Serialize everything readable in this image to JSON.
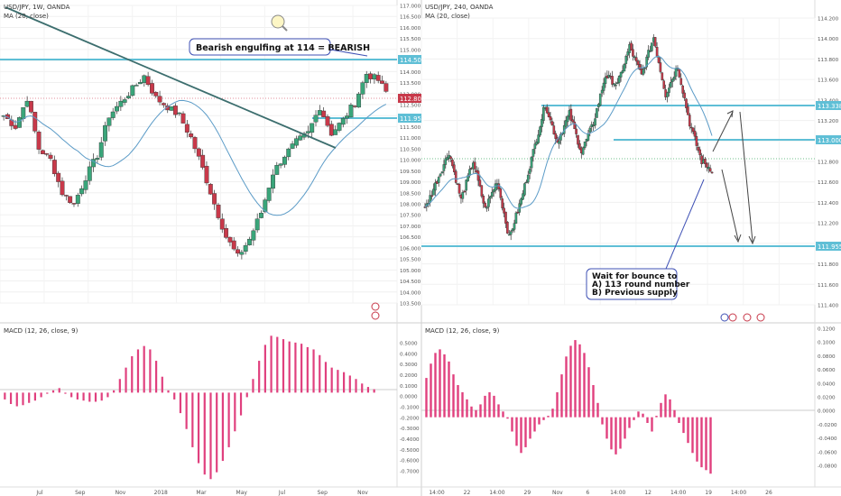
{
  "left_panel": {
    "symbol": "USD/JPY, 1W, OANDA",
    "indicator": "MA (20, close)",
    "price_axis": [
      "117.000",
      "116.500",
      "116.000",
      "115.500",
      "115.000",
      "114.500",
      "114.000",
      "113.500",
      "113.000",
      "112.500",
      "112.000",
      "111.500",
      "111.000",
      "110.500",
      "110.000",
      "109.500",
      "109.000",
      "108.500",
      "108.000",
      "107.500",
      "107.000",
      "106.500",
      "106.000",
      "105.500",
      "105.000",
      "104.500",
      "104.000",
      "103.500"
    ],
    "level_labels": {
      "resistance": "114.500",
      "last": "112.800",
      "support": "111.955"
    },
    "annotation": "Bearish engulfing at 114 = BEARISH",
    "macd_label": "MACD (12, 26, close, 9)",
    "macd_axis": [
      "0.5000",
      "0.4000",
      "0.3000",
      "0.2000",
      "0.1000",
      "0.0000",
      "-0.1000",
      "-0.2000",
      "-0.3000",
      "-0.4000",
      "-0.5000",
      "-0.6000",
      "-0.7000"
    ],
    "time_axis": [
      "Jul",
      "Sep",
      "Nov",
      "2018",
      "Mar",
      "May",
      "Jul",
      "Sep",
      "Nov"
    ]
  },
  "right_panel": {
    "symbol": "USD/JPY, 240, OANDA",
    "indicator": "MA (20, close)",
    "price_axis": [
      "114.200",
      "114.000",
      "113.800",
      "113.600",
      "113.400",
      "113.200",
      "113.000",
      "112.800",
      "112.600",
      "112.400",
      "112.200",
      "112.000",
      "111.800",
      "111.600",
      "111.400"
    ],
    "level_labels": {
      "resistance": "113.338",
      "middle": "113.000",
      "support": "111.955"
    },
    "annotation_lines": [
      "Wait for bounce to",
      "A) 113 round number",
      "B) Previous supply"
    ],
    "macd_label": "MACD (12, 26, close, 9)",
    "macd_axis": [
      "0.1200",
      "0.1000",
      "0.0800",
      "0.0600",
      "0.0400",
      "0.0200",
      "0.0000",
      "-0.0200",
      "-0.0400",
      "-0.0600",
      "-0.0800"
    ],
    "time_axis": [
      "14:00",
      "22",
      "14:00",
      "29",
      "Nov",
      "6",
      "14:00",
      "12",
      "14:00",
      "19",
      "14:00",
      "26"
    ]
  },
  "colors": {
    "up": "#3aa57a",
    "down": "#c8394a",
    "ma": "#5b9bc7",
    "level": "#5fbfd6",
    "macd": "#e0407e",
    "trend": "#3c6e6e",
    "annot_border": "#3f51b5"
  },
  "chart_data": [
    {
      "type": "candlestick",
      "title": "USD/JPY, 1W, OANDA",
      "ylim": [
        103.5,
        117.0
      ],
      "levels": [
        114.5,
        111.955
      ],
      "last": 112.8,
      "close_path": [
        112.0,
        111.5,
        112.8,
        110.5,
        110.0,
        108.5,
        108.0,
        109.2,
        110.2,
        112.0,
        112.6,
        113.2,
        113.8,
        112.8,
        112.4,
        112.0,
        111.0,
        109.6,
        108.0,
        106.5,
        105.6,
        106.4,
        107.6,
        109.4,
        110.2,
        110.8,
        111.2,
        112.4,
        111.2,
        111.8,
        112.6,
        113.9,
        113.6,
        112.8
      ]
    },
    {
      "type": "candlestick",
      "title": "USD/JPY, 240, OANDA",
      "ylim": [
        111.3,
        114.3
      ],
      "levels": [
        113.338,
        113.0,
        111.955
      ],
      "close_path": [
        112.3,
        112.6,
        112.9,
        112.4,
        112.8,
        112.3,
        112.6,
        112.0,
        112.4,
        112.9,
        113.4,
        113.0,
        113.3,
        112.9,
        113.2,
        113.7,
        113.6,
        114.0,
        113.7,
        114.1,
        113.5,
        113.8,
        113.2,
        112.8,
        112.7
      ]
    },
    {
      "type": "bar",
      "title": "MACD (12, 26, close, 9)",
      "ylim": [
        -0.75,
        0.55
      ],
      "values": [
        -0.06,
        -0.1,
        -0.12,
        -0.11,
        -0.09,
        -0.07,
        -0.04,
        -0.01,
        0.02,
        0.04,
        -0.01,
        -0.04,
        -0.06,
        -0.07,
        -0.08,
        -0.08,
        -0.07,
        -0.04,
        0.02,
        0.12,
        0.22,
        0.32,
        0.38,
        0.41,
        0.38,
        0.28,
        0.14,
        0.02,
        -0.06,
        -0.18,
        -0.32,
        -0.48,
        -0.62,
        -0.72,
        -0.76,
        -0.7,
        -0.6,
        -0.48,
        -0.34,
        -0.2,
        -0.04,
        0.12,
        0.28,
        0.42,
        0.5,
        0.49,
        0.47,
        0.45,
        0.44,
        0.43,
        0.4,
        0.38,
        0.33,
        0.27,
        0.22,
        0.2,
        0.18,
        0.15,
        0.12,
        0.08,
        0.05,
        0.03
      ]
    },
    {
      "type": "bar",
      "title": "MACD (12, 26, close, 9)",
      "ylim": [
        -0.085,
        0.122
      ],
      "values": [
        0.055,
        0.075,
        0.09,
        0.095,
        0.088,
        0.078,
        0.06,
        0.045,
        0.035,
        0.025,
        0.015,
        0.01,
        0.018,
        0.03,
        0.035,
        0.03,
        0.018,
        0.008,
        -0.002,
        -0.02,
        -0.04,
        -0.05,
        -0.042,
        -0.03,
        -0.02,
        -0.01,
        -0.004,
        0.002,
        0.012,
        0.035,
        0.06,
        0.085,
        0.1,
        0.108,
        0.102,
        0.09,
        0.07,
        0.045,
        0.02,
        -0.01,
        -0.03,
        -0.045,
        -0.052,
        -0.044,
        -0.03,
        -0.015,
        -0.004,
        0.008,
        0.005,
        -0.008,
        -0.02,
        0.002,
        0.02,
        0.032,
        0.025,
        0.01,
        -0.008,
        -0.022,
        -0.036,
        -0.05,
        -0.062,
        -0.07,
        -0.074,
        -0.079
      ]
    }
  ]
}
